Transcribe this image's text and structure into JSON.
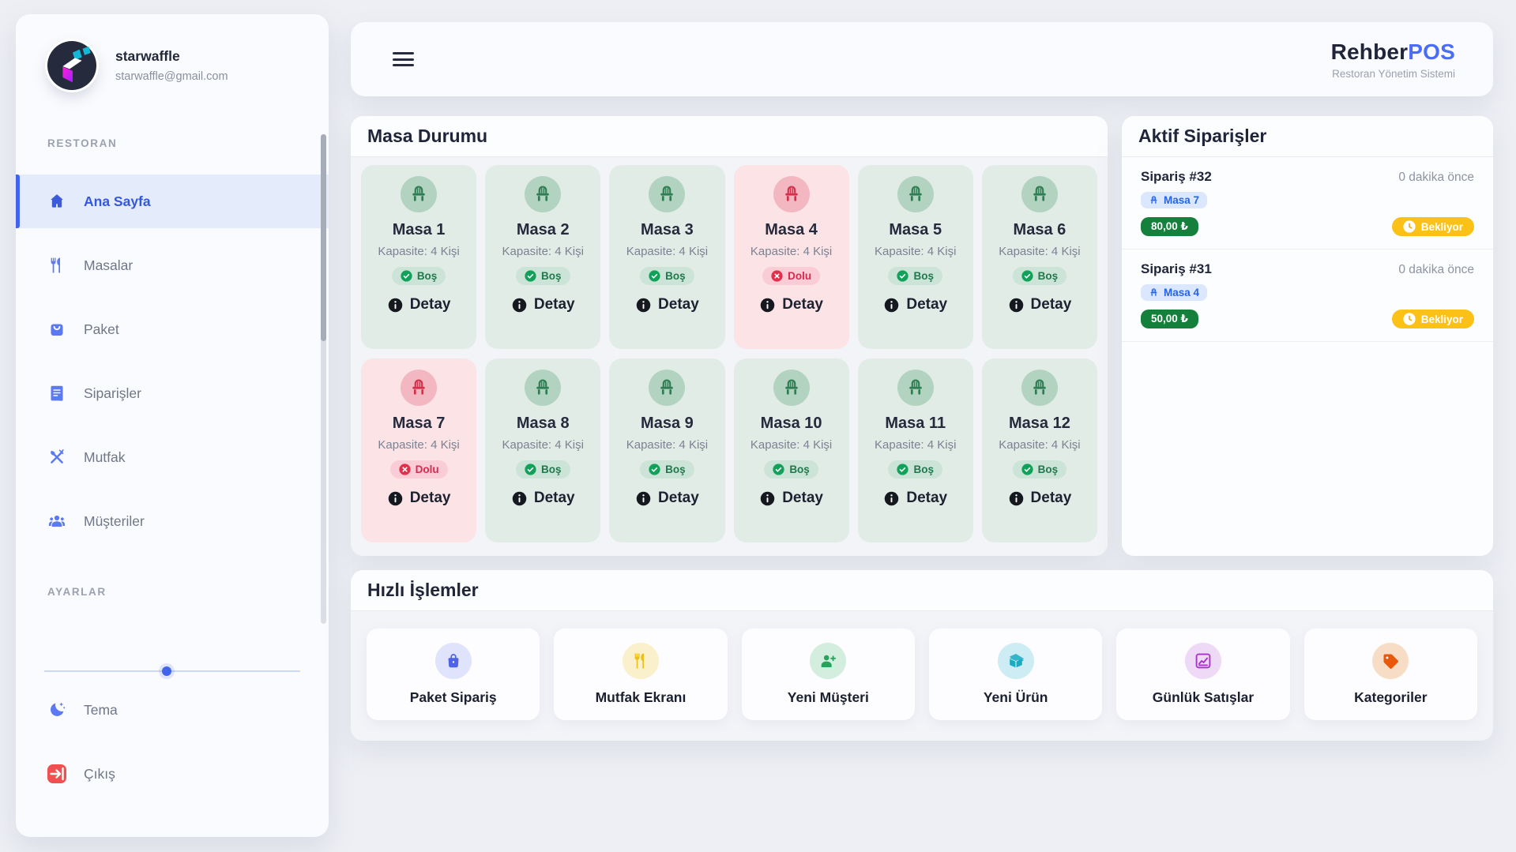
{
  "user": {
    "name": "starwaffle",
    "email": "starwaffle@gmail.com"
  },
  "brand": {
    "title_primary": "Rehber",
    "title_accent": "POS",
    "subtitle": "Restoran Yönetim Sistemi"
  },
  "sidebar": {
    "sections": {
      "restaurant": "RESTORAN",
      "settings": "AYARLAR"
    },
    "items": [
      {
        "key": "home",
        "icon": "home",
        "label": "Ana Sayfa",
        "active": true
      },
      {
        "key": "tables",
        "icon": "utensils",
        "label": "Masalar",
        "active": false
      },
      {
        "key": "package",
        "icon": "shopping-bag",
        "label": "Paket",
        "active": false
      },
      {
        "key": "orders",
        "icon": "receipt",
        "label": "Siparişler",
        "active": false
      },
      {
        "key": "kitchen",
        "icon": "crossed-utensils",
        "label": "Mutfak",
        "active": false
      },
      {
        "key": "customers",
        "icon": "people-group",
        "label": "Müşteriler",
        "active": false
      }
    ],
    "footer": [
      {
        "key": "theme",
        "icon": "moon-stars",
        "label": "Tema"
      },
      {
        "key": "logout",
        "icon": "logout",
        "label": "Çıkış"
      }
    ]
  },
  "tables_panel": {
    "title": "Masa Durumu",
    "capacity_label": "Kapasite: 4 Kişi",
    "detail_label": "Detay",
    "statuses": {
      "free": "Boş",
      "occupied": "Dolu"
    },
    "tables": [
      {
        "name": "Masa 1",
        "status": "free"
      },
      {
        "name": "Masa 2",
        "status": "free"
      },
      {
        "name": "Masa 3",
        "status": "free"
      },
      {
        "name": "Masa 4",
        "status": "occupied"
      },
      {
        "name": "Masa 5",
        "status": "free"
      },
      {
        "name": "Masa 6",
        "status": "free"
      },
      {
        "name": "Masa 7",
        "status": "occupied"
      },
      {
        "name": "Masa 8",
        "status": "free"
      },
      {
        "name": "Masa 9",
        "status": "free"
      },
      {
        "name": "Masa 10",
        "status": "free"
      },
      {
        "name": "Masa 11",
        "status": "free"
      },
      {
        "name": "Masa 12",
        "status": "free"
      }
    ]
  },
  "orders_panel": {
    "title": "Aktif Siparişler",
    "orders": [
      {
        "id": "Sipariş #32",
        "table": "Masa 7",
        "amount": "80,00 ₺",
        "status": "Bekliyor",
        "time": "0 dakika önce"
      },
      {
        "id": "Sipariş #31",
        "table": "Masa 4",
        "amount": "50,00 ₺",
        "status": "Bekliyor",
        "time": "0 dakika önce"
      }
    ]
  },
  "quick_panel": {
    "title": "Hızlı İşlemler",
    "actions": [
      {
        "key": "package-order",
        "label": "Paket Sipariş",
        "icon": "bag",
        "color": "#4f63e8",
        "bg": "#dfe3fb"
      },
      {
        "key": "kitchen-screen",
        "label": "Mutfak Ekranı",
        "icon": "utensils",
        "color": "#ecc01b",
        "bg": "#faf0cb"
      },
      {
        "key": "new-customer",
        "label": "Yeni Müşteri",
        "icon": "person-plus",
        "color": "#28a35d",
        "bg": "#d3edde"
      },
      {
        "key": "new-product",
        "label": "Yeni Ürün",
        "icon": "box",
        "color": "#1aabc2",
        "bg": "#cdecf3"
      },
      {
        "key": "daily-sales",
        "label": "Günlük Satışlar",
        "icon": "chart",
        "color": "#a934c8",
        "bg": "#eed9f6"
      },
      {
        "key": "categories",
        "label": "Kategoriler",
        "icon": "tag",
        "color": "#e8590c",
        "bg": "#f8ddc6"
      }
    ]
  },
  "colors": {
    "accent": "#4263eb",
    "brand_accent": "#4a6cf7",
    "free_card": "#e2ece6",
    "occupied_card": "#fbe3e6",
    "price_pill": "#15803c",
    "waiting_pill": "#fbc117",
    "table_pill": "#dbe7fd",
    "logout_red": "#f15050"
  }
}
